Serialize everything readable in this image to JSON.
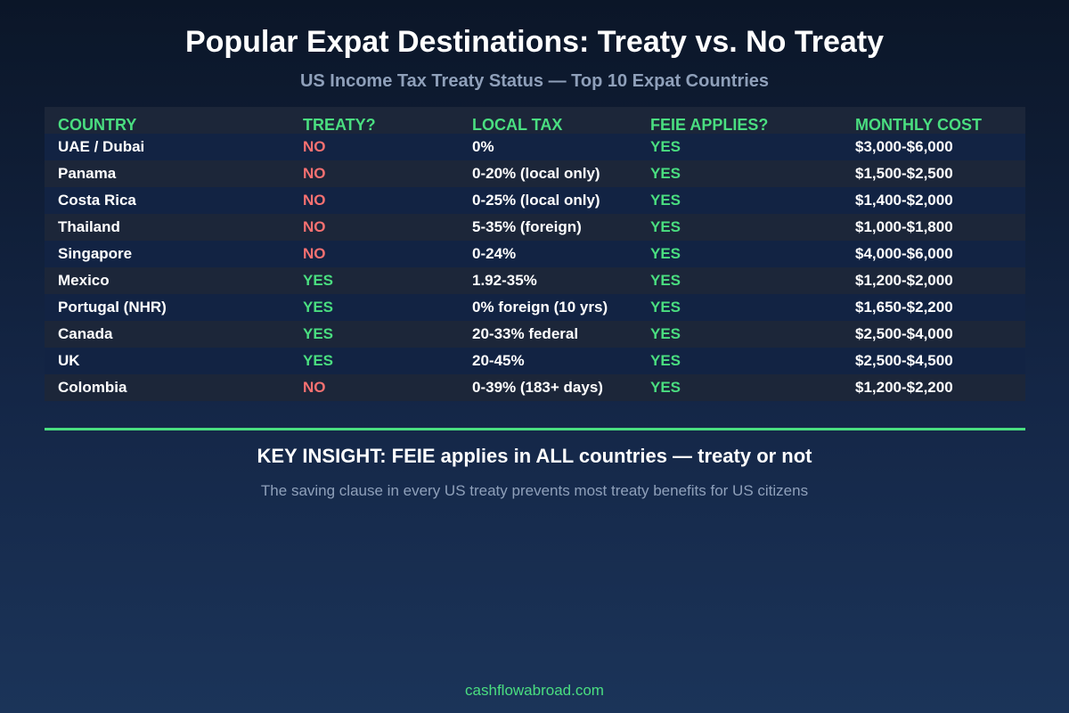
{
  "title": "Popular Expat Destinations: Treaty vs. No Treaty",
  "subtitle": "US Income Tax Treaty Status — Top 10 Expat Countries",
  "colors": {
    "accent_green": "#4ade80",
    "no_red": "#f87171",
    "muted_text": "#8fa0ba",
    "row_dark": "#122343",
    "row_light": "#1c2639"
  },
  "table": {
    "headers": [
      "COUNTRY",
      "TREATY?",
      "LOCAL TAX",
      "FEIE APPLIES?",
      "MONTHLY COST"
    ],
    "rows": [
      {
        "country": "UAE / Dubai",
        "treaty": "NO",
        "local_tax": "0%",
        "feie": "YES",
        "cost": "$3,000-$6,000"
      },
      {
        "country": "Panama",
        "treaty": "NO",
        "local_tax": "0-20% (local only)",
        "feie": "YES",
        "cost": "$1,500-$2,500"
      },
      {
        "country": "Costa Rica",
        "treaty": "NO",
        "local_tax": "0-25% (local only)",
        "feie": "YES",
        "cost": "$1,400-$2,000"
      },
      {
        "country": "Thailand",
        "treaty": "NO",
        "local_tax": "5-35% (foreign)",
        "feie": "YES",
        "cost": "$1,000-$1,800"
      },
      {
        "country": "Singapore",
        "treaty": "NO",
        "local_tax": "0-24%",
        "feie": "YES",
        "cost": "$4,000-$6,000"
      },
      {
        "country": "Mexico",
        "treaty": "YES",
        "local_tax": "1.92-35%",
        "feie": "YES",
        "cost": "$1,200-$2,000"
      },
      {
        "country": "Portugal (NHR)",
        "treaty": "YES",
        "local_tax": "0% foreign (10 yrs)",
        "feie": "YES",
        "cost": "$1,650-$2,200"
      },
      {
        "country": "Canada",
        "treaty": "YES",
        "local_tax": "20-33% federal",
        "feie": "YES",
        "cost": "$2,500-$4,000"
      },
      {
        "country": "UK",
        "treaty": "YES",
        "local_tax": "20-45%",
        "feie": "YES",
        "cost": "$2,500-$4,500"
      },
      {
        "country": "Colombia",
        "treaty": "NO",
        "local_tax": "0-39% (183+ days)",
        "feie": "YES",
        "cost": "$1,200-$2,200"
      }
    ]
  },
  "insight": {
    "heading": "KEY INSIGHT: FEIE applies in ALL countries — treaty or not",
    "detail": "The saving clause in every US treaty prevents most treaty benefits for US citizens"
  },
  "footer": "cashflowabroad.com"
}
